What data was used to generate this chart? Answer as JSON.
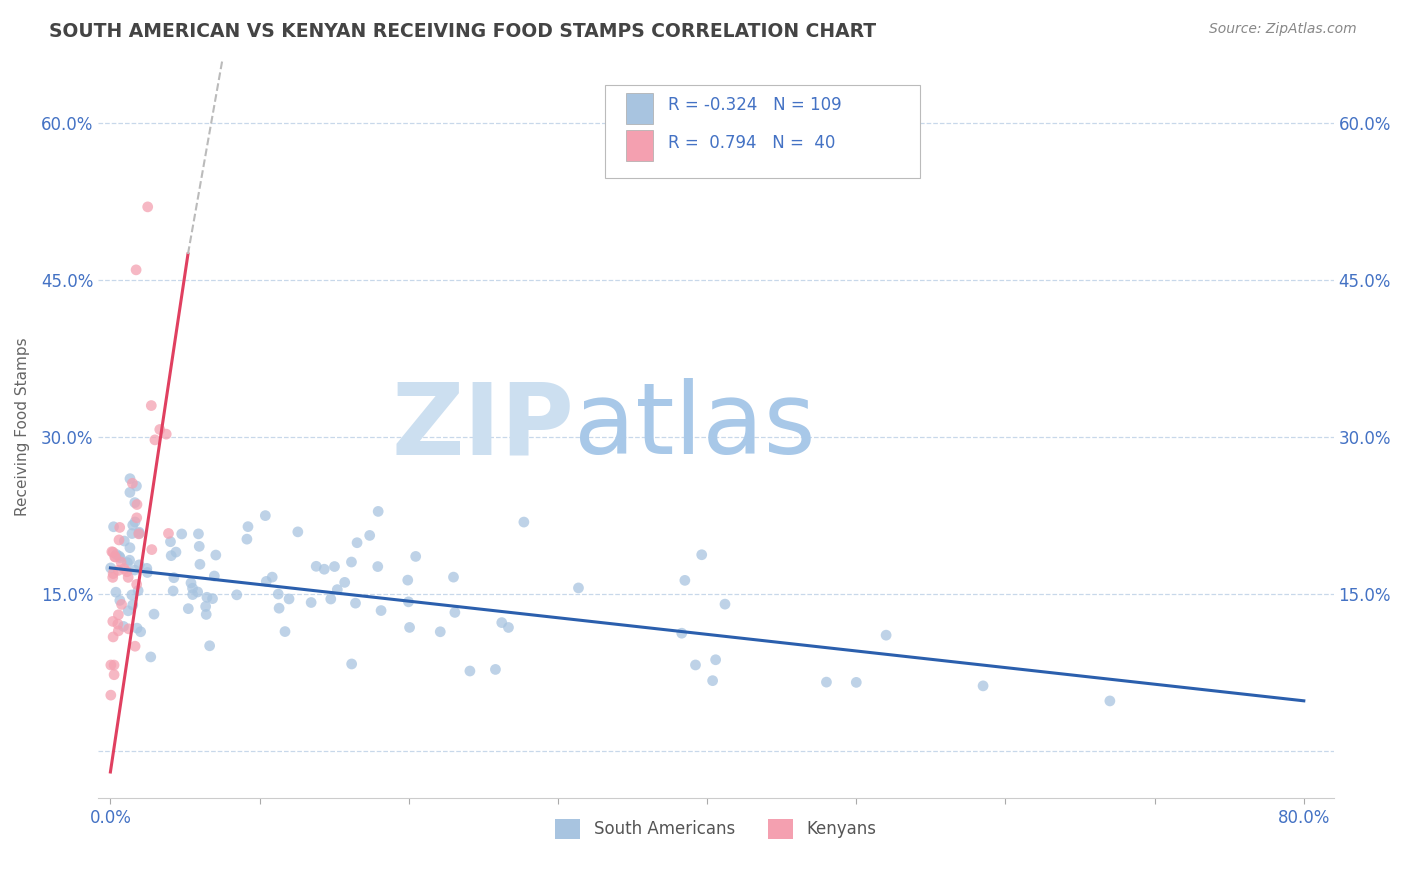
{
  "title": "SOUTH AMERICAN VS KENYAN RECEIVING FOOD STAMPS CORRELATION CHART",
  "source": "Source: ZipAtlas.com",
  "ylabel": "Receiving Food Stamps",
  "legend_south": "South Americans",
  "legend_kenya": "Kenyans",
  "r_south": -0.324,
  "n_south": 109,
  "r_kenya": 0.794,
  "n_kenya": 40,
  "color_south": "#a8c4e0",
  "color_kenya": "#f4a0b0",
  "line_color_south": "#2b5fad",
  "line_color_kenya": "#e04060",
  "line_color_kenya_dashed": "#bbbbbb",
  "watermark_zip": "ZIP",
  "watermark_atlas": "atlas",
  "title_color": "#444444",
  "source_color": "#888888",
  "tick_color": "#4472c4",
  "ylabel_color": "#666666",
  "grid_color": "#c8d8ea",
  "xlim": [
    -0.008,
    0.82
  ],
  "ylim": [
    -0.045,
    0.665
  ],
  "xtick_vals": [
    0.0,
    0.1,
    0.2,
    0.3,
    0.4,
    0.5,
    0.6,
    0.7,
    0.8
  ],
  "xtick_labels": [
    "0.0%",
    "",
    "",
    "",
    "",
    "",
    "",
    "",
    "80.0%"
  ],
  "ytick_vals": [
    0.0,
    0.15,
    0.3,
    0.45,
    0.6
  ],
  "ytick_labels": [
    "",
    "15.0%",
    "30.0%",
    "45.0%",
    "60.0%"
  ],
  "sa_line_x0": 0.0,
  "sa_line_x1": 0.8,
  "sa_line_y0": 0.175,
  "sa_line_y1": 0.048,
  "k_line_x0": 0.0,
  "k_line_x1": 0.052,
  "k_line_y0": -0.02,
  "k_line_y1": 0.475,
  "k_line_ext_x0": 0.052,
  "k_line_ext_x1": 0.075,
  "k_line_ext_y0": 0.475,
  "k_line_ext_y1": 0.66
}
